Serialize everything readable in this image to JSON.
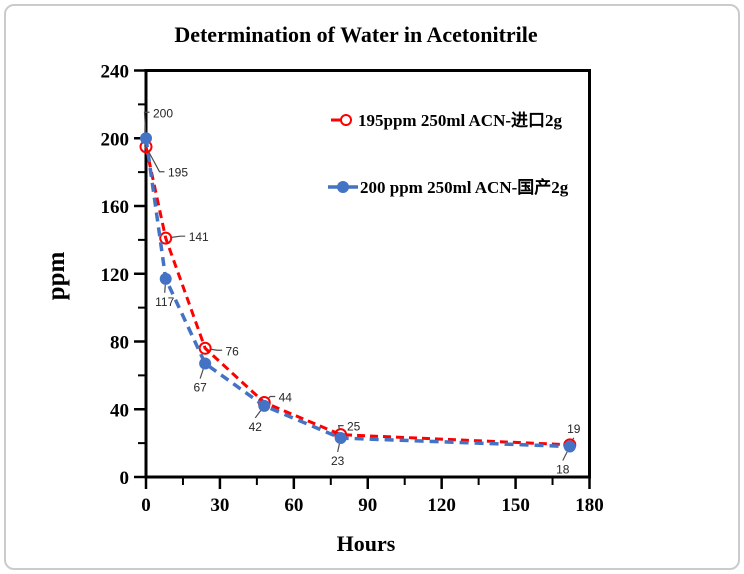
{
  "frame": {
    "border_color": "#cbcbcb",
    "background": "#ffffff"
  },
  "chart_data": {
    "type": "line",
    "title": "Determination of Water in Acetonitrile",
    "xlabel": "Hours",
    "ylabel": "ppm",
    "xlim": [
      0,
      180
    ],
    "ylim": [
      0,
      240
    ],
    "x_major_ticks": [
      0,
      30,
      60,
      90,
      120,
      150,
      180
    ],
    "x_minor_step": 15,
    "y_major_ticks": [
      0,
      40,
      80,
      120,
      160,
      200,
      240
    ],
    "y_minor_step": 20,
    "grid": false,
    "legend_position": "inside-top-right",
    "axis_color": "#000000",
    "x": [
      0,
      8,
      24,
      48,
      79,
      172
    ],
    "series": [
      {
        "name": "195ppm  250ml ACN-进口2g",
        "color": "#ff0000",
        "line_style": "dashed",
        "marker": "open-circle",
        "values": [
          195,
          141,
          76,
          44,
          25,
          19
        ],
        "point_labels": [
          {
            "text": "195",
            "dx": 32,
            "dy": 26
          },
          {
            "text": "141",
            "dx": 33,
            "dy": -1
          },
          {
            "text": "76",
            "dx": 27,
            "dy": 3
          },
          {
            "text": "44",
            "dx": 21,
            "dy": -5
          },
          {
            "text": "25",
            "dx": 13,
            "dy": -8
          },
          {
            "text": "19",
            "dx": 4,
            "dy": -16
          }
        ]
      },
      {
        "name": "200 ppm 250ml ACN-国产2g",
        "color": "#4472c4",
        "line_style": "dashed",
        "marker": "filled-circle",
        "values": [
          200,
          117,
          67,
          42,
          23,
          18
        ],
        "point_labels": [
          {
            "text": "200",
            "dx": 17,
            "dy": -25
          },
          {
            "text": "117",
            "dx": -1,
            "dy": 23
          },
          {
            "text": "67",
            "dx": -5,
            "dy": 24
          },
          {
            "text": "42",
            "dx": -9,
            "dy": 21
          },
          {
            "text": "23",
            "dx": -3,
            "dy": 23
          },
          {
            "text": "18",
            "dx": -7,
            "dy": 23
          }
        ]
      }
    ],
    "annotation_leader_color": "#4d4d4d"
  }
}
